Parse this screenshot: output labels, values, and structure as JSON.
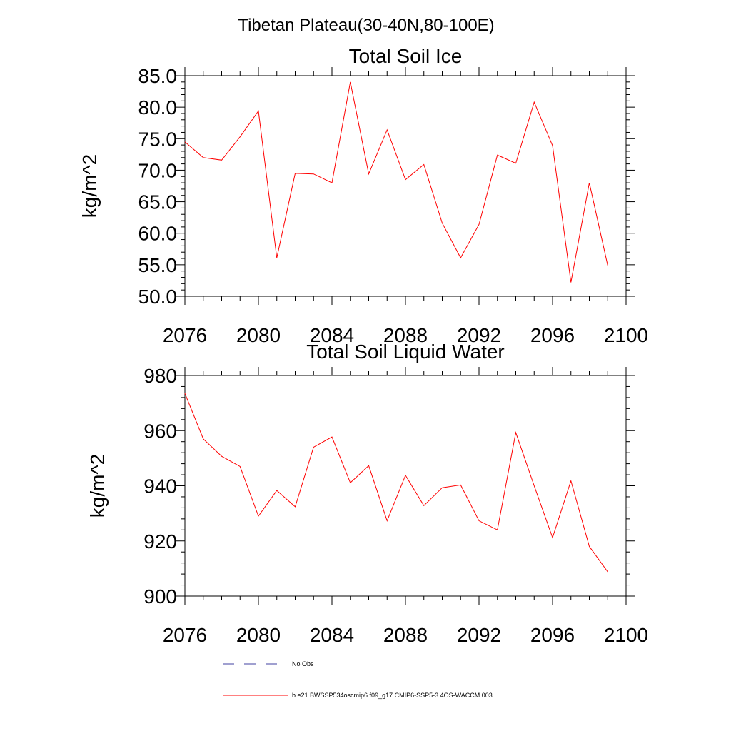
{
  "figure_title": "Tibetan Plateau(30-40N,80-100E)",
  "colors": {
    "series": "#ff0000",
    "obs": "#4040a0",
    "axis": "#000000"
  },
  "legend": {
    "obs_label": "No Obs",
    "model_label": "b.e21.BWSSP534oscmip6.f09_g17.CMIP6-SSP5-3.4OS-WACCM.003"
  },
  "chart_data": [
    {
      "type": "line",
      "title": "Total Soil Ice",
      "xlabel": "",
      "ylabel": "kg/m^2",
      "xlim": [
        2076,
        2100
      ],
      "ylim": [
        50,
        85
      ],
      "xticks": [
        "2076",
        "2080",
        "2084",
        "2088",
        "2092",
        "2096",
        "2100"
      ],
      "yticks": [
        "50.0",
        "55.0",
        "60.0",
        "65.0",
        "70.0",
        "75.0",
        "80.0",
        "85.0"
      ],
      "x": [
        2076,
        2077,
        2078,
        2079,
        2080,
        2081,
        2082,
        2083,
        2084,
        2085,
        2086,
        2087,
        2088,
        2089,
        2090,
        2091,
        2092,
        2093,
        2094,
        2095,
        2096,
        2097,
        2098,
        2099
      ],
      "values": [
        74.5,
        72.0,
        71.6,
        75.3,
        79.4,
        56.1,
        69.5,
        69.4,
        68.0,
        84.0,
        69.4,
        76.4,
        68.5,
        70.9,
        61.6,
        56.1,
        61.4,
        72.4,
        71.1,
        80.8,
        73.9,
        52.2,
        68.0,
        54.9
      ]
    },
    {
      "type": "line",
      "title": "Total Soil Liquid Water",
      "xlabel": "",
      "ylabel": "kg/m^2",
      "xlim": [
        2076,
        2100
      ],
      "ylim": [
        900,
        980
      ],
      "xticks": [
        "2076",
        "2080",
        "2084",
        "2088",
        "2092",
        "2096",
        "2100"
      ],
      "yticks": [
        "900",
        "920",
        "940",
        "960",
        "980"
      ],
      "x": [
        2076,
        2077,
        2078,
        2079,
        2080,
        2081,
        2082,
        2083,
        2084,
        2085,
        2086,
        2087,
        2088,
        2089,
        2090,
        2091,
        2092,
        2093,
        2094,
        2095,
        2096,
        2097,
        2098,
        2099
      ],
      "values": [
        973.5,
        957.0,
        950.7,
        947.0,
        929.0,
        938.3,
        932.4,
        954.0,
        957.7,
        941.1,
        947.3,
        927.3,
        943.8,
        932.8,
        939.3,
        940.3,
        927.3,
        924.0,
        959.3,
        940.0,
        921.2,
        941.8,
        918.0,
        908.8
      ]
    }
  ]
}
